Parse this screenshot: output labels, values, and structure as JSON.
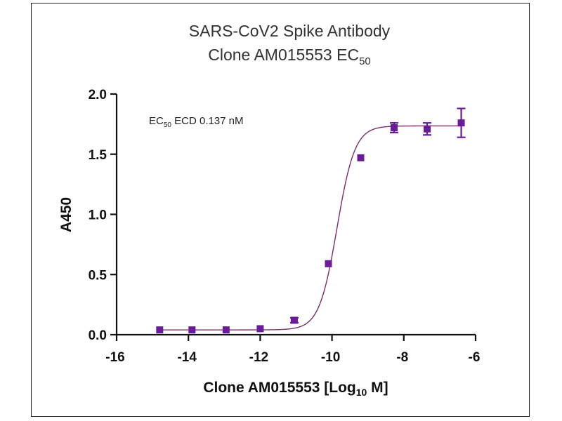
{
  "chart_data": {
    "type": "scatter",
    "title_line1": "SARS-CoV2 Spike Antibody",
    "title_line2_main": "Clone AM015553 EC",
    "title_line2_sub": "50",
    "annotation": {
      "pre": "EC",
      "sub": "50",
      "post": " ECD 0.137 nM"
    },
    "xlabel": {
      "pre": "Clone AM015553 [Log",
      "sub": "10",
      "post": " M]"
    },
    "ylabel": "A450",
    "xlim": [
      -16,
      -6
    ],
    "ylim": [
      0,
      2.0
    ],
    "xticks": [
      -16,
      -14,
      -12,
      -10,
      -8,
      -6
    ],
    "yticks": [
      0.0,
      0.5,
      1.0,
      1.5,
      2.0
    ],
    "ytick_labels": [
      "0.0",
      "0.5",
      "1.0",
      "1.5",
      "2.0"
    ],
    "marker_color": "#6a1b9a",
    "curve_color": "#7b2d6e",
    "series": [
      {
        "x": [
          -14.8,
          -13.9,
          -12.95,
          -12.0,
          -11.05,
          -10.1,
          -9.2,
          -8.27,
          -7.35,
          -6.4
        ],
        "y": [
          0.04,
          0.04,
          0.04,
          0.05,
          0.12,
          0.59,
          1.47,
          1.72,
          1.71,
          1.76
        ],
        "err": [
          0.01,
          0.01,
          0.01,
          0.01,
          0.02,
          0.01,
          0.01,
          0.04,
          0.05,
          0.12
        ]
      }
    ],
    "fit": {
      "bottom": 0.04,
      "top": 1.735,
      "log_ec50": -9.86,
      "hill": 1.75
    }
  }
}
